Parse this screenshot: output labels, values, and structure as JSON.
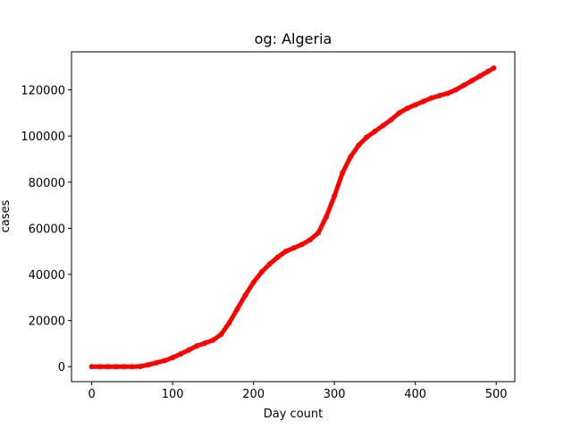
{
  "chart_data": {
    "type": "scatter",
    "title": "og: Algeria",
    "xlabel": "Day count",
    "ylabel": "cases",
    "xlim": [
      -25,
      523
    ],
    "ylim": [
      -6500,
      136500
    ],
    "xticks": [
      0,
      100,
      200,
      300,
      400,
      500
    ],
    "yticks": [
      0,
      20000,
      40000,
      60000,
      80000,
      100000,
      120000
    ],
    "xtick_labels": [
      "0",
      "100",
      "200",
      "300",
      "400",
      "500"
    ],
    "ytick_labels": [
      "0",
      "20000",
      "40000",
      "60000",
      "80000",
      "100000",
      "120000"
    ],
    "grid": false,
    "marker_color": "#ff0000",
    "series": [
      {
        "x": [
          0,
          10,
          20,
          30,
          40,
          50,
          60,
          70,
          80,
          90,
          100,
          110,
          120,
          130,
          140,
          150,
          160,
          170,
          180,
          190,
          200,
          210,
          220,
          230,
          240,
          250,
          260,
          270,
          280,
          290,
          300,
          310,
          320,
          330,
          340,
          350,
          360,
          370,
          380,
          390,
          400,
          410,
          420,
          430,
          440,
          450,
          460,
          470,
          480,
          490,
          497
        ],
        "y": [
          0,
          0,
          0,
          0,
          0,
          0,
          100,
          800,
          1700,
          2600,
          3900,
          5500,
          7200,
          9000,
          10200,
          11500,
          14000,
          19000,
          25000,
          31000,
          36500,
          41000,
          44500,
          47500,
          50000,
          51500,
          53000,
          55000,
          58000,
          65000,
          74000,
          84000,
          91000,
          96000,
          99500,
          102000,
          104500,
          107000,
          110000,
          112000,
          113500,
          115000,
          116500,
          117500,
          118500,
          120000,
          122000,
          124000,
          126000,
          128000,
          129500
        ]
      }
    ]
  }
}
